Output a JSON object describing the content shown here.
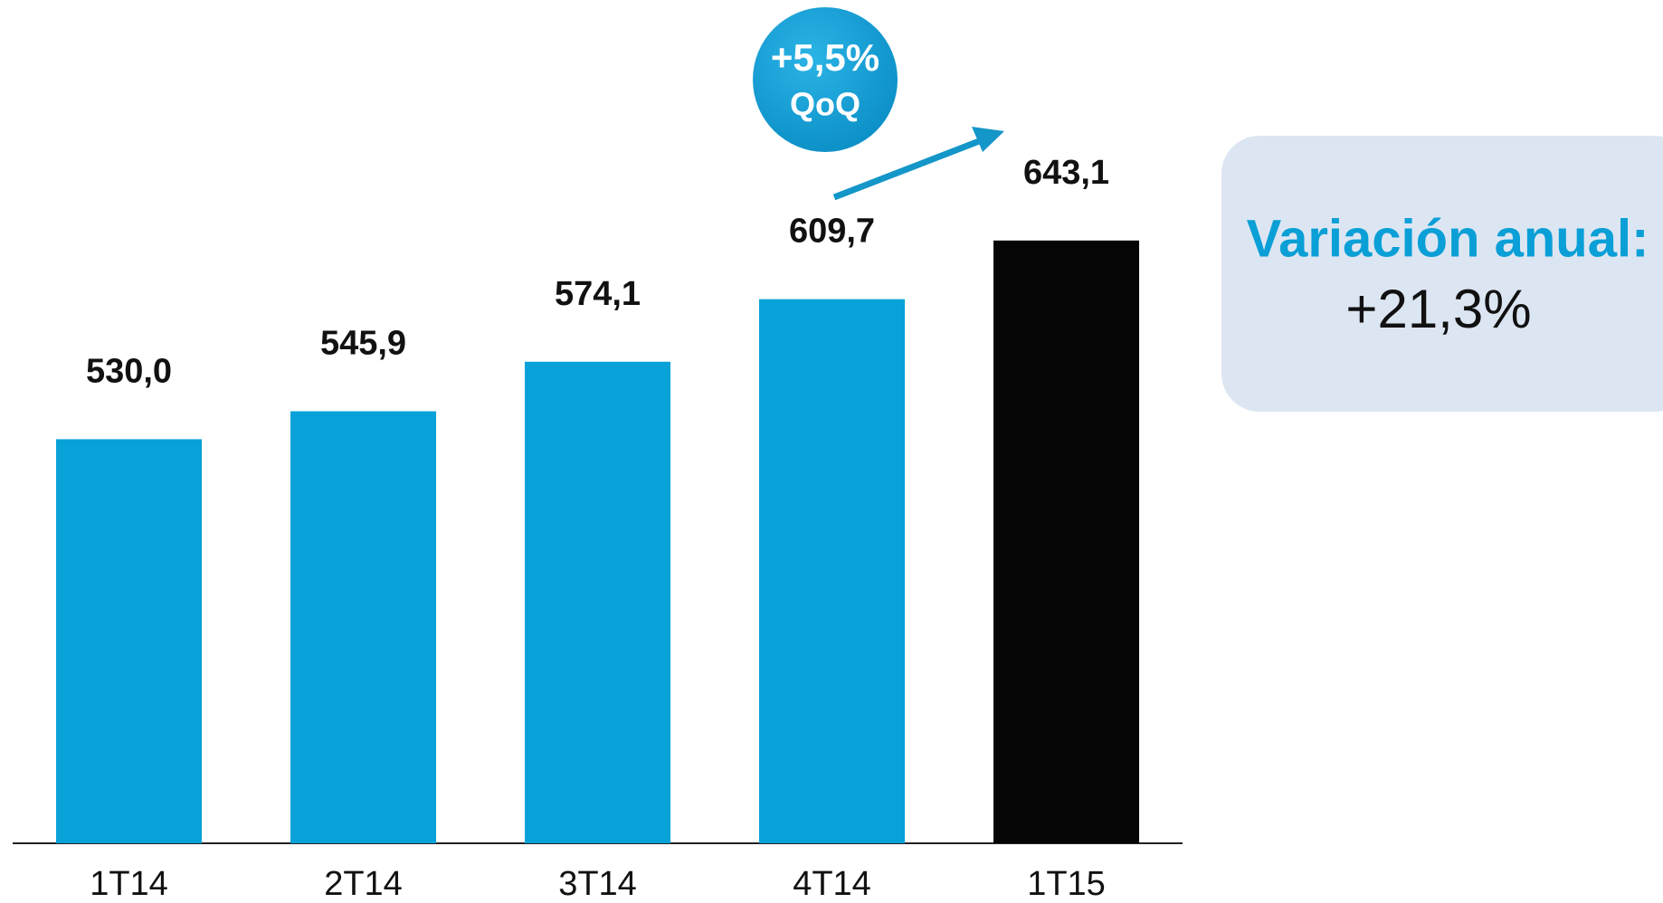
{
  "chart_data": {
    "type": "bar",
    "categories": [
      "1T14",
      "2T14",
      "3T14",
      "4T14",
      "1T15"
    ],
    "values": [
      530.0,
      545.9,
      574.1,
      609.7,
      643.1
    ],
    "value_labels": [
      "530,0",
      "545,9",
      "574,1",
      "609,7",
      "643,1"
    ],
    "colors": [
      "#08a2d8",
      "#08a2d8",
      "#08a2d8",
      "#08a2d8",
      "#050505"
    ],
    "ylim": [
      300,
      780
    ],
    "annotation": {
      "change": "+5,5%",
      "period": "QoQ"
    },
    "summary": {
      "title": "Variación anual:",
      "value": "+21,3%"
    }
  }
}
